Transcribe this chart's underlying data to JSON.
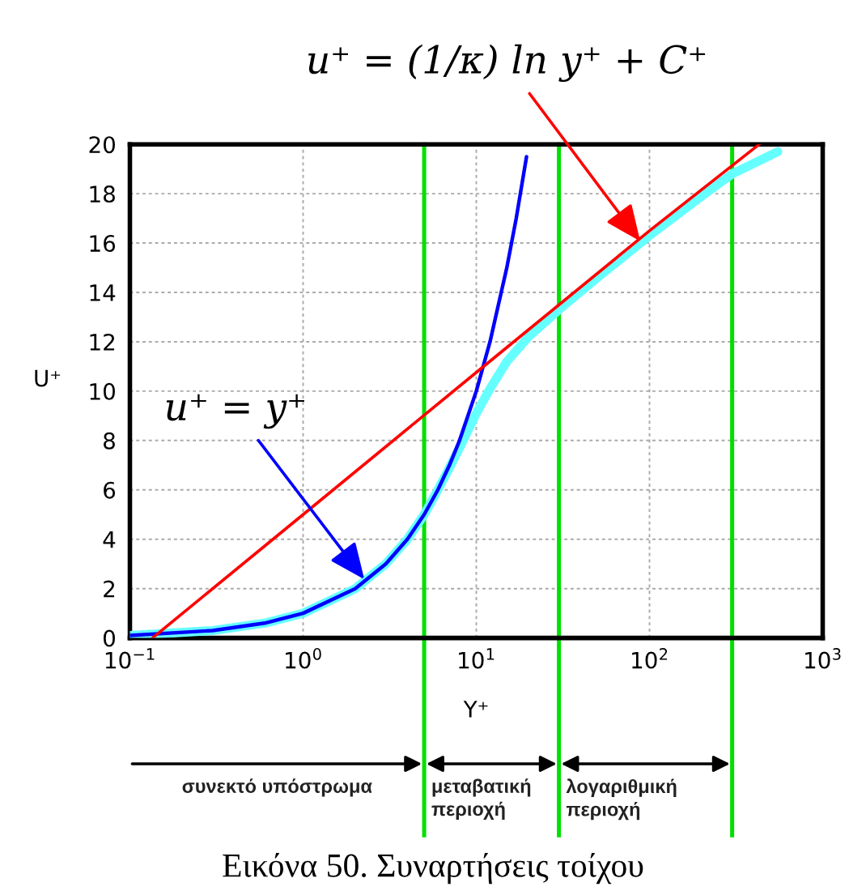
{
  "chart_data": {
    "type": "line",
    "xlabel": "Y⁺",
    "ylabel": "U⁺",
    "log": "x",
    "xlim": [
      0.1,
      1000
    ],
    "xticks": [
      {
        "value": 0.1,
        "label": "10$^{−1}$"
      },
      {
        "value": 1,
        "label": "10$^{0}$"
      },
      {
        "value": 10,
        "label": "10$^{1}$"
      },
      {
        "value": 100,
        "label": "10$^{2}$"
      },
      {
        "value": 1000,
        "label": "10$^{3}$"
      }
    ],
    "ylim": [
      0,
      20
    ],
    "yticks": [
      0,
      2,
      4,
      6,
      8,
      10,
      12,
      14,
      16,
      18,
      20
    ],
    "grid": true,
    "series": [
      {
        "color": "#66ffff",
        "x": [
          0.1,
          0.3,
          0.6,
          1,
          2,
          3,
          4,
          5,
          6,
          7,
          8,
          10,
          12,
          15,
          20,
          30,
          50,
          100,
          200,
          300,
          550
        ],
        "values": [
          0.1,
          0.3,
          0.6,
          1,
          2,
          3,
          4,
          5,
          6,
          6.9,
          7.7,
          9.1,
          10.1,
          11.2,
          12.2,
          13.3,
          14.6,
          16.3,
          17.9,
          18.8,
          19.7
        ]
      },
      {
        "color": "#0000ff",
        "x": [
          0.1,
          0.3,
          0.6,
          1,
          2,
          3,
          4,
          5,
          6,
          7,
          8,
          10,
          12,
          15,
          17,
          19.5
        ],
        "values": [
          0.1,
          0.3,
          0.6,
          1,
          2,
          3,
          4,
          5,
          6,
          7,
          8,
          10,
          12,
          15,
          17,
          19.5
        ]
      },
      {
        "color": "#ff0000",
        "x": [
          0.135,
          1,
          10,
          100,
          430
        ],
        "values": [
          0,
          5,
          10.76,
          16.5,
          20
        ]
      }
    ],
    "ref_lines": [
      {
        "axis": "x",
        "value": 5,
        "color": "#00e000"
      },
      {
        "axis": "x",
        "value": 30,
        "color": "#00e000"
      },
      {
        "axis": "x",
        "value": 300,
        "color": "#00e000"
      }
    ],
    "annotations": [
      {
        "text": "u⁺ = (1/κ) ln y⁺ + C⁺",
        "x": 90,
        "y": 16
      },
      {
        "text": "u⁺ = y⁺",
        "x": 2.3,
        "y": 2.3
      },
      "συνεκτό υπόστρωμα",
      "μεταβατική\nπεριοχή",
      "λογαριθμική\nπεριοχή",
      "Εικόνα 50. Συναρτήσεις τοίχου"
    ]
  }
}
